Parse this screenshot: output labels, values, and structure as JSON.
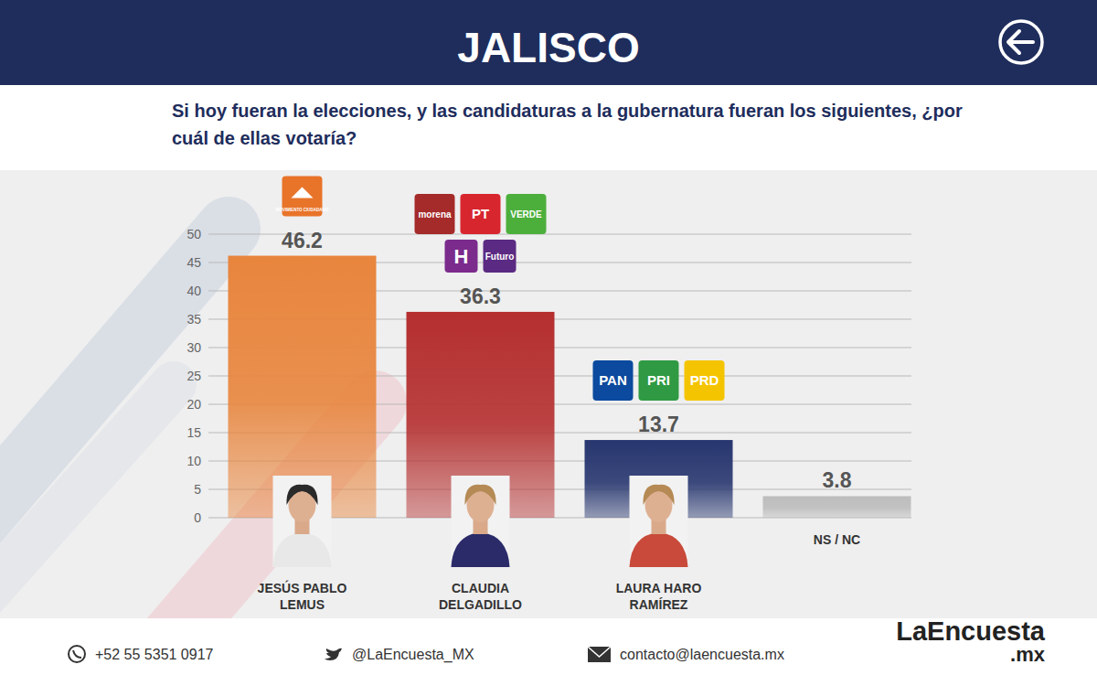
{
  "chart_data": {
    "type": "bar",
    "title": "JALISCO",
    "subtitle": "Si hoy fueran la elecciones, y las candidaturas a la gubernatura fueran los siguientes, ¿por cuál de ellas votaría?",
    "categories": [
      "JESÚS PABLO LEMUS",
      "CLAUDIA DELGADILLO",
      "LAURA HARO RAMÍREZ",
      "NS / NC"
    ],
    "values": [
      46.2,
      36.3,
      13.7,
      3.8
    ],
    "colors": [
      "#e8853d",
      "#b52f2f",
      "#27366f",
      "#bdbdbd"
    ],
    "ylim": [
      0,
      50
    ],
    "yticks": [
      0,
      5,
      10,
      15,
      20,
      25,
      30,
      35,
      40,
      45,
      50
    ],
    "grid": true,
    "data_labels": true,
    "annotations": [
      [
        {
          "text": "MOVIMIENTO CIUDADANO",
          "color": "#e8742a"
        }
      ],
      [
        {
          "text": "morena",
          "color": "#a52a2a"
        },
        {
          "text": "PT",
          "color": "#d8262e"
        },
        {
          "text": "VERDE",
          "color": "#4caf3c"
        },
        {
          "text": "H",
          "color": "#7a2b8c"
        },
        {
          "text": "Futuro",
          "color": "#5b2a82"
        }
      ],
      [
        {
          "text": "PAN",
          "color": "#0b4a9e"
        },
        {
          "text": "PRI",
          "color": "#2f9a43"
        },
        {
          "text": "PRD",
          "color": "#f5c400"
        }
      ],
      []
    ],
    "footer": [
      "+52 55 5351 0917",
      "@LaEncuesta_MX",
      "contacto@laencuesta.mx"
    ],
    "brand": [
      "LaEncuesta",
      ".mx"
    ]
  }
}
